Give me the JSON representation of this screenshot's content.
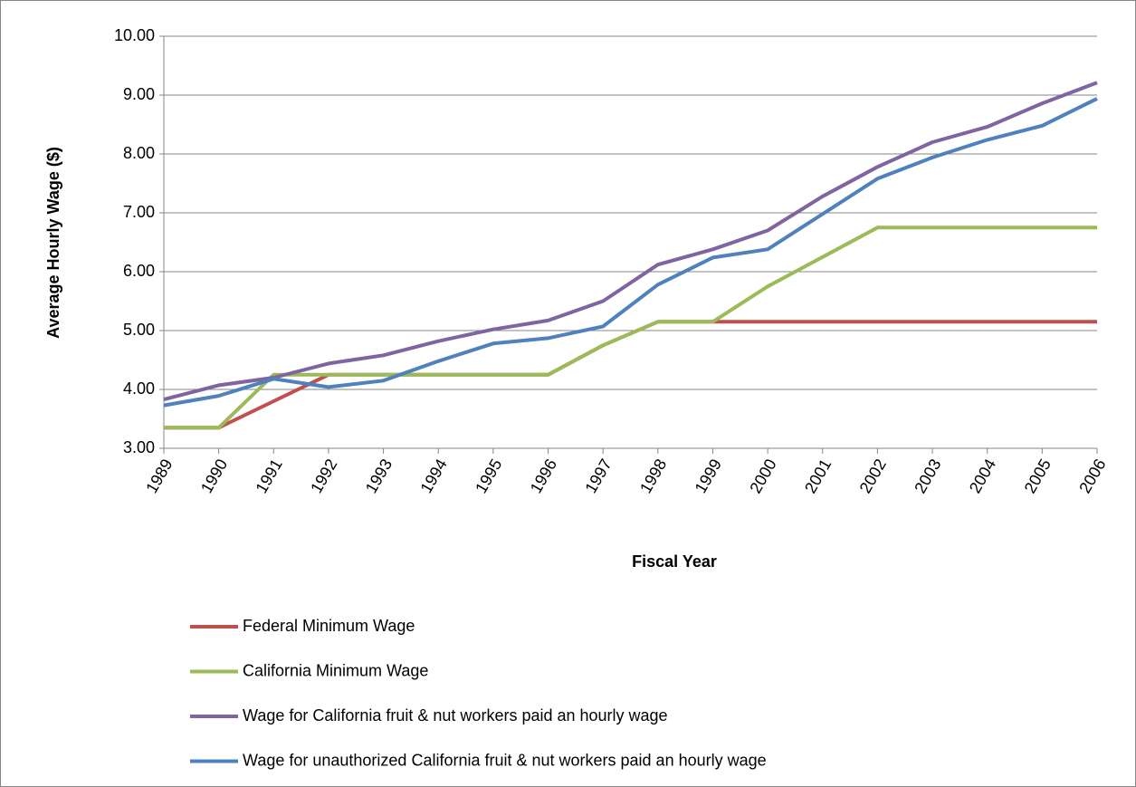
{
  "chart_data": {
    "type": "line",
    "x_label": "Fiscal Year",
    "y_label": "Average Hourly Wage ($)",
    "categories": [
      "1989",
      "1990",
      "1991",
      "1992",
      "1993",
      "1994",
      "1995",
      "1996",
      "1997",
      "1998",
      "1999",
      "2000",
      "2001",
      "2002",
      "2003",
      "2004",
      "2005",
      "2006"
    ],
    "series": [
      {
        "name": "Federal Minimum Wage",
        "color": "#c0504d",
        "values": [
          3.35,
          3.35,
          3.8,
          4.25,
          4.25,
          4.25,
          4.25,
          4.25,
          4.75,
          5.15,
          5.15,
          5.15,
          5.15,
          5.15,
          5.15,
          5.15,
          5.15,
          5.15
        ]
      },
      {
        "name": "California Minimum Wage",
        "color": "#9bbb59",
        "values": [
          3.35,
          3.35,
          4.25,
          4.25,
          4.25,
          4.25,
          4.25,
          4.25,
          4.75,
          5.15,
          5.15,
          5.75,
          6.25,
          6.75,
          6.75,
          6.75,
          6.75,
          6.75
        ]
      },
      {
        "name": "Wage for California fruit & nut workers paid an hourly wage",
        "color": "#8064a2",
        "values": [
          3.83,
          4.07,
          4.2,
          4.44,
          4.58,
          4.82,
          5.02,
          5.17,
          5.5,
          6.12,
          6.38,
          6.7,
          7.28,
          7.78,
          8.2,
          8.46,
          8.86,
          9.21
        ]
      },
      {
        "name": "Wage for unauthorized California fruit & nut workers paid an hourly wage",
        "color": "#4f81bd",
        "values": [
          3.73,
          3.89,
          4.18,
          4.04,
          4.15,
          4.48,
          4.78,
          4.87,
          5.07,
          5.78,
          6.24,
          6.38,
          6.98,
          7.58,
          7.94,
          8.24,
          8.48,
          8.94
        ]
      }
    ],
    "ylim": [
      3,
      10
    ],
    "yticks": [
      {
        "value": 3,
        "label": "3.00"
      },
      {
        "value": 4,
        "label": "4.00"
      },
      {
        "value": 5,
        "label": "5.00"
      },
      {
        "value": 6,
        "label": "6.00"
      },
      {
        "value": 7,
        "label": "7.00"
      },
      {
        "value": 8,
        "label": "8.00"
      },
      {
        "value": 9,
        "label": "9.00"
      },
      {
        "value": 10,
        "label": "10.00"
      }
    ],
    "grid": true,
    "legend": "bottom"
  }
}
